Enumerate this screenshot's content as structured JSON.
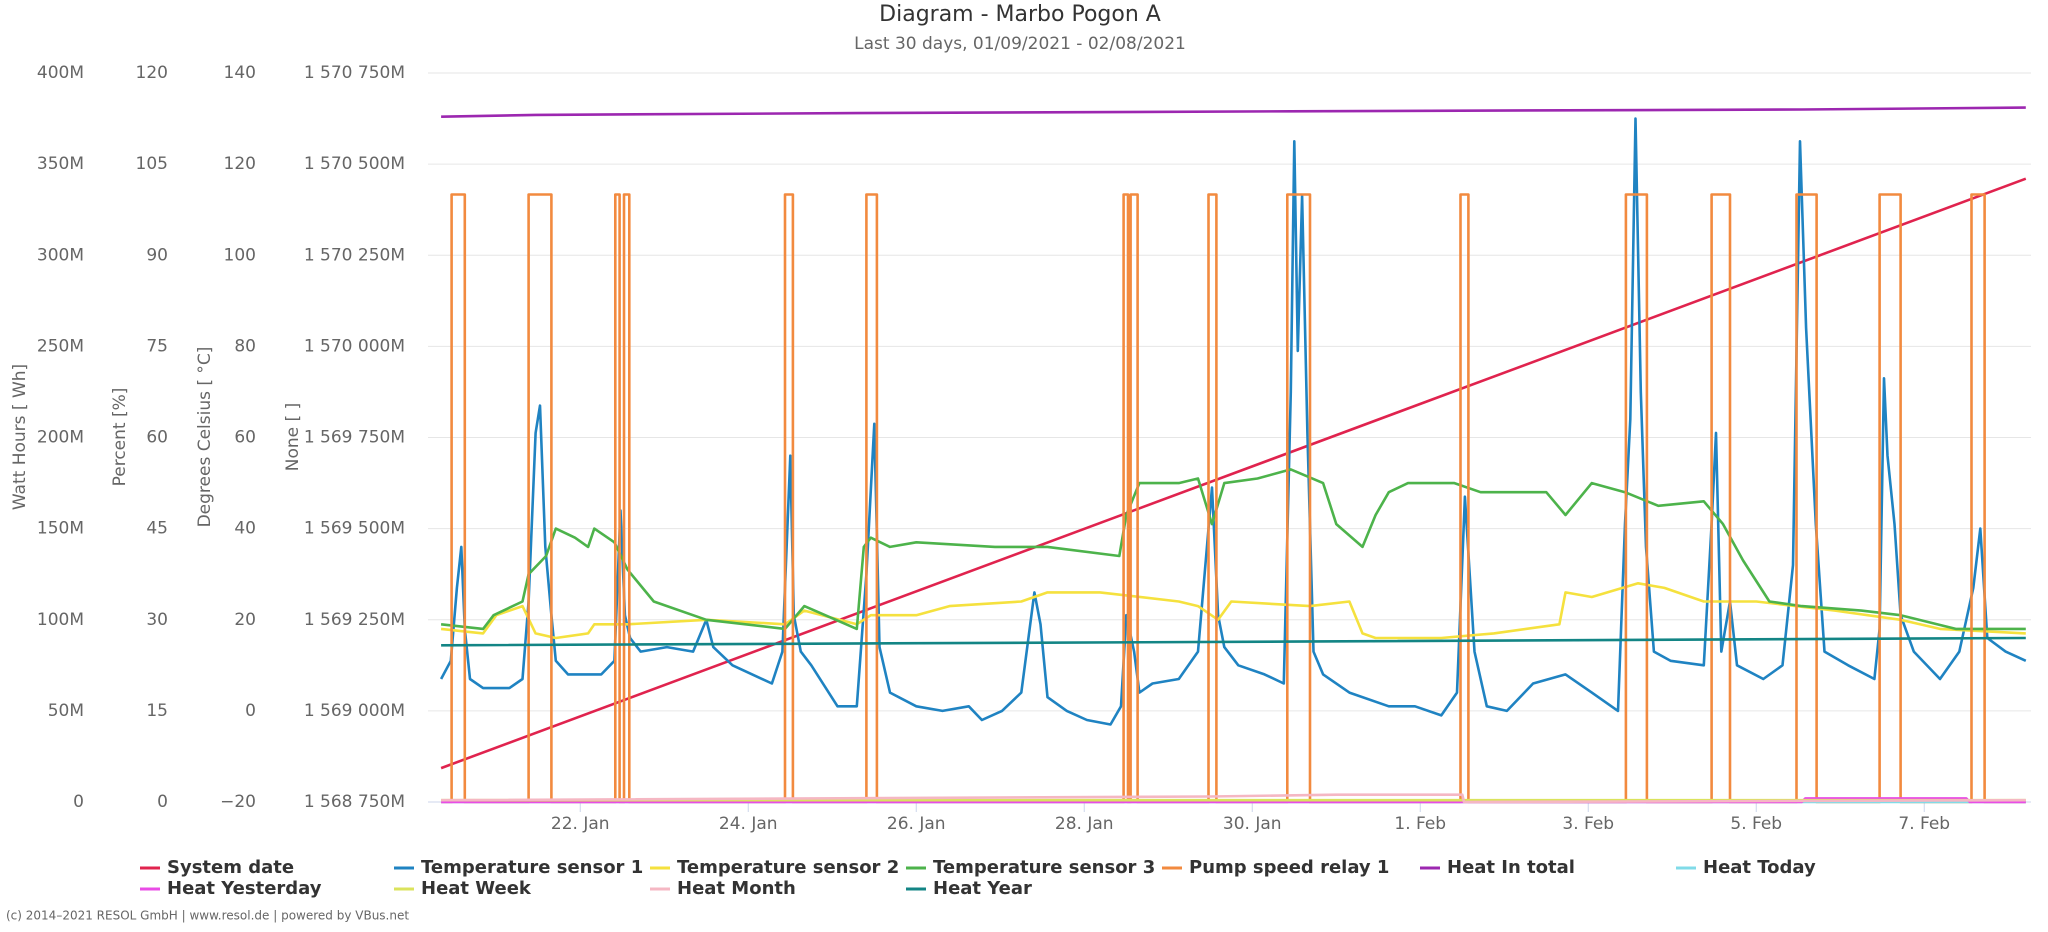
{
  "chart_data": {
    "type": "line",
    "title": "Diagram - Marbo Pogon A",
    "subtitle": "Last 30 days, 01/09/2021 - 02/08/2021",
    "footer": "(c) 2014–2021 RESOL GmbH | www.resol.de | powered by VBus.net",
    "grid": true,
    "legend": "bottom",
    "xlim": [
      "2021-01-20T04:30",
      "2021-02-08T06:30"
    ],
    "xticks": [
      {
        "value": "2021-01-22T00:00",
        "label": "22. Jan"
      },
      {
        "value": "2021-01-24T00:00",
        "label": "24. Jan"
      },
      {
        "value": "2021-01-26T00:00",
        "label": "26. Jan"
      },
      {
        "value": "2021-01-28T00:00",
        "label": "28. Jan"
      },
      {
        "value": "2021-01-30T00:00",
        "label": "30. Jan"
      },
      {
        "value": "2021-02-01T00:00",
        "label": "1. Feb"
      },
      {
        "value": "2021-02-03T00:00",
        "label": "3. Feb"
      },
      {
        "value": "2021-02-05T00:00",
        "label": "5. Feb"
      },
      {
        "value": "2021-02-07T00:00",
        "label": "7. Feb"
      }
    ],
    "axes": [
      {
        "title": "Watt Hours [ Wh]",
        "ylim": [
          0,
          400
        ],
        "yticks": [
          {
            "value": 0,
            "label": "0"
          },
          {
            "value": 50,
            "label": "50M"
          },
          {
            "value": 100,
            "label": "100M"
          },
          {
            "value": 150,
            "label": "150M"
          },
          {
            "value": 200,
            "label": "200M"
          },
          {
            "value": 250,
            "label": "250M"
          },
          {
            "value": 300,
            "label": "300M"
          },
          {
            "value": 350,
            "label": "350M"
          },
          {
            "value": 400,
            "label": "400M"
          }
        ]
      },
      {
        "title": "Percent [%]",
        "ylim": [
          0,
          120
        ],
        "yticks": [
          0,
          15,
          30,
          45,
          60,
          75,
          90,
          105,
          120
        ]
      },
      {
        "title": "Degrees Celsius [ °C]",
        "ylim": [
          -20,
          140
        ],
        "yticks": [
          {
            "value": -20,
            "label": "−20"
          },
          0,
          20,
          40,
          60,
          80,
          100,
          120,
          140
        ]
      },
      {
        "title": "None [ ]",
        "ylim": [
          1568750,
          1570750
        ],
        "yticks": [
          {
            "value": 1568750,
            "label": "1 568 750M"
          },
          {
            "value": 1569000,
            "label": "1 569 000M"
          },
          {
            "value": 1569250,
            "label": "1 569 250M"
          },
          {
            "value": 1569500,
            "label": "1 569 500M"
          },
          {
            "value": 1569750,
            "label": "1 569 750M"
          },
          {
            "value": 1570000,
            "label": "1 570 000M"
          },
          {
            "value": 1570250,
            "label": "1 570 250M"
          },
          {
            "value": 1570500,
            "label": "1 570 500M"
          },
          {
            "value": 1570750,
            "label": "1 570 750M"
          }
        ]
      }
    ],
    "series": [
      {
        "name": "System date",
        "color": "#e0234e",
        "axis": 3,
        "x": [
          "2021-01-20T08:15",
          "2021-02-08T05:00"
        ],
        "values": [
          1568843,
          1570460
        ]
      },
      {
        "name": "Temperature sensor 1",
        "color": "#1f83c2",
        "axis": 2,
        "x": [
          "2021-01-20T08:15",
          "2021-01-20T11:00",
          "2021-01-20T12:45",
          "2021-01-20T14:00",
          "2021-01-20T15:00",
          "2021-01-20T16:30",
          "2021-01-20T20:15",
          "2021-01-21T03:45",
          "2021-01-21T07:30",
          "2021-01-21T09:15",
          "2021-01-21T11:15",
          "2021-01-21T12:30",
          "2021-01-21T14:00",
          "2021-01-21T15:45",
          "2021-01-21T17:00",
          "2021-01-21T20:30",
          "2021-01-22T06:00",
          "2021-01-22T09:45",
          "2021-01-22T11:30",
          "2021-01-22T12:45",
          "2021-01-22T14:15",
          "2021-01-22T17:15",
          "2021-01-23T00:45",
          "2021-01-23T08:15",
          "2021-01-23T12:00",
          "2021-01-23T14:00",
          "2021-01-23T19:30",
          "2021-01-24T06:45",
          "2021-01-24T09:45",
          "2021-01-24T12:00",
          "2021-01-24T13:00",
          "2021-01-24T15:00",
          "2021-01-24T18:00",
          "2021-01-25T01:30",
          "2021-01-25T07:00",
          "2021-01-25T09:45",
          "2021-01-25T12:00",
          "2021-01-25T13:30",
          "2021-01-25T16:30",
          "2021-01-26T00:00",
          "2021-01-26T07:30",
          "2021-01-26T15:00",
          "2021-01-26T18:45",
          "2021-01-27T00:30",
          "2021-01-27T06:00",
          "2021-01-27T09:45",
          "2021-01-27T11:30",
          "2021-01-27T13:30",
          "2021-01-27T19:00",
          "2021-01-28T00:45",
          "2021-01-28T07:30",
          "2021-01-28T10:30",
          "2021-01-28T12:00",
          "2021-01-28T14:15",
          "2021-01-28T15:45",
          "2021-01-28T19:30",
          "2021-01-29T03:00",
          "2021-01-29T08:30",
          "2021-01-29T12:30",
          "2021-01-29T14:15",
          "2021-01-29T16:00",
          "2021-01-29T20:00",
          "2021-01-30T03:30",
          "2021-01-30T09:00",
          "2021-01-30T11:00",
          "2021-01-30T12:00",
          "2021-01-30T13:00",
          "2021-01-30T14:15",
          "2021-01-30T15:45",
          "2021-01-30T17:30",
          "2021-01-30T20:15",
          "2021-01-31T03:45",
          "2021-01-31T15:00",
          "2021-01-31T22:30",
          "2021-02-01T06:00",
          "2021-02-01T10:30",
          "2021-02-01T12:45",
          "2021-02-01T15:30",
          "2021-02-01T19:00",
          "2021-02-02T00:45",
          "2021-02-02T08:15",
          "2021-02-02T17:30",
          "2021-02-03T01:00",
          "2021-02-03T08:30",
          "2021-02-03T10:30",
          "2021-02-03T12:00",
          "2021-02-03T13:30",
          "2021-02-03T15:00",
          "2021-02-03T16:30",
          "2021-02-03T18:45",
          "2021-02-03T23:30",
          "2021-02-04T09:00",
          "2021-02-04T11:15",
          "2021-02-04T12:30",
          "2021-02-04T14:00",
          "2021-02-04T16:30",
          "2021-02-04T18:30",
          "2021-02-05T02:00",
          "2021-02-05T07:30",
          "2021-02-05T10:30",
          "2021-02-05T12:30",
          "2021-02-05T14:15",
          "2021-02-05T17:00",
          "2021-02-05T19:30",
          "2021-02-06T02:15",
          "2021-02-06T09:45",
          "2021-02-06T11:15",
          "2021-02-06T12:30",
          "2021-02-06T13:30",
          "2021-02-06T15:30",
          "2021-02-06T17:15",
          "2021-02-06T21:00",
          "2021-02-07T04:30",
          "2021-02-07T10:00",
          "2021-02-07T14:00",
          "2021-02-07T16:00",
          "2021-02-07T18:00",
          "2021-02-07T23:15",
          "2021-02-08T05:00"
        ],
        "values": [
          7,
          11,
          27,
          36,
          18,
          7,
          5,
          5,
          7,
          24,
          61,
          67,
          36,
          21,
          11,
          8,
          8,
          11,
          44,
          21,
          16,
          13,
          14,
          13,
          20,
          14,
          10,
          6,
          13,
          56,
          21,
          13,
          10,
          1,
          1,
          30,
          63,
          14,
          4,
          1,
          0,
          1,
          -2,
          0,
          4,
          26,
          19,
          3,
          0,
          -2,
          -3,
          1,
          21,
          13,
          4,
          6,
          7,
          13,
          49,
          21,
          14,
          10,
          8,
          6,
          70,
          125,
          79,
          113,
          61,
          13,
          8,
          4,
          1,
          1,
          -1,
          4,
          47,
          13,
          1,
          0,
          6,
          8,
          4,
          0,
          41,
          64,
          130,
          70,
          36,
          13,
          11,
          10,
          41,
          61,
          13,
          24,
          10,
          7,
          10,
          32,
          125,
          84,
          41,
          13,
          10,
          7,
          18,
          73,
          56,
          41,
          21,
          13,
          7,
          13,
          27,
          40,
          16,
          13,
          11
        ]
      },
      {
        "name": "Temperature sensor 2",
        "color": "#f5e13e",
        "axis": 2,
        "x": [
          "2021-01-20T08:15",
          "2021-01-20T20:15",
          "2021-01-21T00:00",
          "2021-01-21T07:30",
          "2021-01-21T11:15",
          "2021-01-21T17:00",
          "2021-01-22T02:15",
          "2021-01-22T04:00",
          "2021-01-22T13:30",
          "2021-01-23T12:00",
          "2021-01-24T10:30",
          "2021-01-24T16:00",
          "2021-01-25T07:00",
          "2021-01-25T11:00",
          "2021-01-26T00:00",
          "2021-01-26T09:30",
          "2021-01-27T06:00",
          "2021-01-27T13:30",
          "2021-01-28T00:45",
          "2021-01-28T04:30",
          "2021-01-29T03:00",
          "2021-01-29T08:30",
          "2021-01-29T14:15",
          "2021-01-29T18:00",
          "2021-01-30T16:30",
          "2021-01-31T03:45",
          "2021-01-31T07:30",
          "2021-01-31T11:15",
          "2021-02-01T06:00",
          "2021-02-01T21:00",
          "2021-02-02T15:45",
          "2021-02-02T17:30",
          "2021-02-03T01:00",
          "2021-02-03T14:15",
          "2021-02-03T21:45",
          "2021-02-04T09:00",
          "2021-02-05T00:00",
          "2021-02-05T22:30",
          "2021-02-06T17:15",
          "2021-02-07T04:30",
          "2021-02-08T05:00"
        ],
        "values": [
          18,
          17,
          21,
          23,
          17,
          16,
          17,
          19,
          19,
          20,
          19,
          22,
          19,
          21,
          21,
          23,
          24,
          26,
          26,
          26,
          24,
          23,
          20,
          24,
          23,
          24,
          17,
          16,
          16,
          17,
          19,
          26,
          25,
          28,
          27,
          24,
          24,
          22,
          20,
          18,
          17
        ]
      },
      {
        "name": "Temperature sensor 3",
        "color": "#4db34b",
        "axis": 2,
        "x": [
          "2021-01-20T08:15",
          "2021-01-20T20:15",
          "2021-01-20T23:15",
          "2021-01-21T07:30",
          "2021-01-21T09:15",
          "2021-01-21T14:15",
          "2021-01-21T17:00",
          "2021-01-21T22:30",
          "2021-01-22T02:15",
          "2021-01-22T04:00",
          "2021-01-22T09:45",
          "2021-01-22T13:30",
          "2021-01-22T21:00",
          "2021-01-23T12:00",
          "2021-01-24T10:30",
          "2021-01-24T16:00",
          "2021-01-25T07:00",
          "2021-01-25T09:00",
          "2021-01-25T11:00",
          "2021-01-25T16:30",
          "2021-01-26T00:00",
          "2021-01-26T22:30",
          "2021-01-27T13:30",
          "2021-01-28T10:00",
          "2021-01-28T12:00",
          "2021-01-28T15:45",
          "2021-01-29T03:00",
          "2021-01-29T08:30",
          "2021-01-29T12:30",
          "2021-01-29T16:00",
          "2021-01-30T01:30",
          "2021-01-30T11:00",
          "2021-01-30T20:15",
          "2021-01-31T00:00",
          "2021-01-31T07:30",
          "2021-01-31T11:15",
          "2021-01-31T15:00",
          "2021-01-31T20:30",
          "2021-02-01T09:45",
          "2021-02-01T17:15",
          "2021-02-02T12:00",
          "2021-02-02T17:30",
          "2021-02-03T01:00",
          "2021-02-03T10:30",
          "2021-02-03T20:00",
          "2021-02-04T09:00",
          "2021-02-04T14:30",
          "2021-02-04T20:15",
          "2021-02-05T03:45",
          "2021-02-05T13:00",
          "2021-02-06T06:00",
          "2021-02-06T17:15",
          "2021-02-07T09:00",
          "2021-02-08T05:00"
        ],
        "values": [
          19,
          18,
          21,
          24,
          30,
          34,
          40,
          38,
          36,
          40,
          37,
          31,
          24,
          20,
          18,
          23,
          18,
          36,
          38,
          36,
          37,
          36,
          36,
          34,
          43,
          50,
          50,
          51,
          41,
          50,
          51,
          53,
          50,
          41,
          36,
          43,
          48,
          50,
          50,
          48,
          48,
          43,
          50,
          48,
          45,
          46,
          41,
          33,
          24,
          23,
          22,
          21,
          18,
          18
        ]
      },
      {
        "name": "Pump speed relay 1",
        "color": "#f28a3f",
        "axis": 1,
        "x": [
          "2021-01-20T08:15",
          "2021-01-20T11:15",
          "2021-01-20T11:15",
          "2021-01-20T15:00",
          "2021-01-20T15:00",
          "2021-01-21T09:15",
          "2021-01-21T09:15",
          "2021-01-21T15:45",
          "2021-01-21T15:45",
          "2021-01-22T10:00",
          "2021-01-22T10:00",
          "2021-01-22T11:15",
          "2021-01-22T11:15",
          "2021-01-22T12:30",
          "2021-01-22T12:30",
          "2021-01-22T14:00",
          "2021-01-22T14:00",
          "2021-01-24T10:30",
          "2021-01-24T10:30",
          "2021-01-24T12:45",
          "2021-01-24T12:45",
          "2021-01-25T09:45",
          "2021-01-25T09:45",
          "2021-01-25T12:45",
          "2021-01-25T12:45",
          "2021-01-28T11:15",
          "2021-01-28T11:15",
          "2021-01-28T12:30",
          "2021-01-28T12:30",
          "2021-01-28T13:15",
          "2021-01-28T13:15",
          "2021-01-28T15:15",
          "2021-01-28T15:15",
          "2021-01-29T11:30",
          "2021-01-29T11:30",
          "2021-01-29T13:45",
          "2021-01-29T13:45",
          "2021-01-30T10:00",
          "2021-01-30T10:00",
          "2021-01-30T16:30",
          "2021-01-30T16:30",
          "2021-02-01T11:30",
          "2021-02-01T11:30",
          "2021-02-01T13:45",
          "2021-02-01T13:45",
          "2021-02-03T10:45",
          "2021-02-03T10:45",
          "2021-02-03T16:45",
          "2021-02-03T16:45",
          "2021-02-04T11:15",
          "2021-02-04T11:15",
          "2021-02-04T16:30",
          "2021-02-04T16:30",
          "2021-02-05T11:30",
          "2021-02-05T11:30",
          "2021-02-05T17:15",
          "2021-02-05T17:15",
          "2021-02-06T11:15",
          "2021-02-06T11:15",
          "2021-02-06T17:15",
          "2021-02-06T17:15",
          "2021-02-07T13:30",
          "2021-02-07T13:30",
          "2021-02-07T17:15",
          "2021-02-07T17:15",
          "2021-02-08T05:00"
        ],
        "values": [
          0,
          0,
          100,
          100,
          0,
          0,
          100,
          100,
          0,
          0,
          100,
          100,
          0,
          0,
          100,
          100,
          0,
          0,
          100,
          100,
          0,
          0,
          100,
          100,
          0,
          0,
          100,
          100,
          0,
          0,
          100,
          100,
          0,
          0,
          100,
          100,
          0,
          0,
          100,
          100,
          0,
          0,
          100,
          100,
          0,
          0,
          100,
          100,
          0,
          0,
          100,
          100,
          0,
          0,
          100,
          100,
          0,
          0,
          100,
          100,
          0,
          0,
          100,
          100,
          0,
          0
        ]
      },
      {
        "name": "Heat In total",
        "color": "#9c27b0",
        "axis": 0,
        "x": [
          "2021-01-20T08:15",
          "2021-01-21T11:15",
          "2021-01-25T07:00",
          "2021-01-30T11:00",
          "2021-02-05T13:00",
          "2021-02-08T05:00"
        ],
        "values": [
          376,
          377,
          378,
          379,
          380,
          381
        ]
      },
      {
        "name": "Heat Today",
        "color": "#80dbe8",
        "axis": 0,
        "x": [
          "2021-01-20T08:15",
          "2021-02-08T05:00"
        ],
        "values": [
          0,
          0
        ]
      },
      {
        "name": "Heat Yesterday",
        "color": "#e94ce6",
        "axis": 0,
        "x": [
          "2021-01-20T08:15",
          "2021-02-05T13:00",
          "2021-02-05T14:00",
          "2021-02-07T12:00",
          "2021-02-07T13:00",
          "2021-02-08T05:00"
        ],
        "values": [
          0,
          0,
          2,
          2,
          0,
          0
        ]
      },
      {
        "name": "Heat Week",
        "color": "#dbe35c",
        "axis": 0,
        "x": [
          "2021-01-20T08:15",
          "2021-02-08T05:00"
        ],
        "values": [
          1,
          1
        ]
      },
      {
        "name": "Heat Month",
        "color": "#f5b7c3",
        "axis": 0,
        "x": [
          "2021-01-20T08:15",
          "2021-01-29T12:00",
          "2021-01-31T00:00",
          "2021-02-01T12:00",
          "2021-02-01T12:30",
          "2021-02-08T05:00"
        ],
        "values": [
          1,
          3,
          4,
          4,
          0,
          1
        ]
      },
      {
        "name": "Heat Year",
        "color": "#138585",
        "axis": 0,
        "x": [
          "2021-01-20T08:15",
          "2021-01-30T11:00",
          "2021-02-08T05:00"
        ],
        "values": [
          86,
          88,
          90
        ]
      }
    ]
  }
}
